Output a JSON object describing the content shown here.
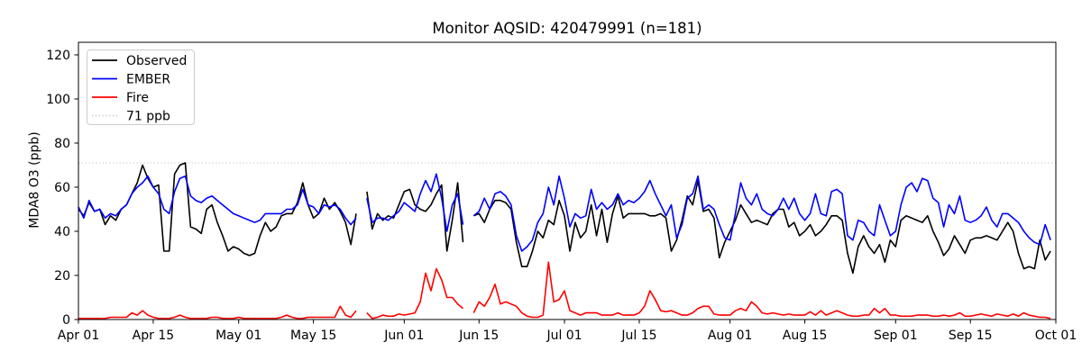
{
  "chart_data": {
    "type": "line",
    "title": "Monitor AQSID: 420479991 (n=181)",
    "xlabel": "",
    "ylabel": "MDA8 O3 (ppb)",
    "n_points": 181,
    "grid": false,
    "legend_position": "upper left",
    "x_start": "Apr 01",
    "x_end": "Sep 30",
    "x_unit": "day",
    "ylim": [
      0,
      125.7
    ],
    "y_ticks": [
      0,
      20,
      40,
      60,
      80,
      100,
      120
    ],
    "x_ticks": [
      {
        "label": "Apr 01",
        "day": 0
      },
      {
        "label": "Apr 15",
        "day": 14
      },
      {
        "label": "May 01",
        "day": 30
      },
      {
        "label": "May 15",
        "day": 44
      },
      {
        "label": "Jun 01",
        "day": 61
      },
      {
        "label": "Jun 15",
        "day": 75
      },
      {
        "label": "Jul 01",
        "day": 91
      },
      {
        "label": "Jul 15",
        "day": 105
      },
      {
        "label": "Aug 01",
        "day": 122
      },
      {
        "label": "Aug 15",
        "day": 136
      },
      {
        "label": "Sep 01",
        "day": 153
      },
      {
        "label": "Sep 15",
        "day": 167
      },
      {
        "label": "Oct 01",
        "day": 183
      }
    ],
    "threshold": {
      "label": "71 ppb",
      "value": 71,
      "color": "#d3d3d3",
      "style": "dotted"
    },
    "series": [
      {
        "name": "Observed",
        "color": "#000000",
        "style": "solid",
        "values": [
          50,
          47,
          53,
          49,
          50,
          43,
          47,
          45,
          50,
          52,
          57,
          62,
          70,
          64,
          60,
          61,
          31,
          31,
          66,
          70,
          71,
          42,
          41,
          39,
          50,
          52,
          44,
          38,
          31,
          33,
          32,
          30,
          29,
          30,
          38,
          44,
          40,
          42,
          47,
          48,
          48,
          53,
          62,
          52,
          46,
          48,
          55,
          50,
          53,
          49,
          44,
          34,
          48,
          null,
          58,
          41,
          48,
          45,
          47,
          46,
          52,
          58,
          59,
          52,
          50,
          49,
          52,
          57,
          61,
          31,
          45,
          62,
          35,
          null,
          47,
          48,
          44,
          50,
          54,
          54,
          53,
          50,
          35,
          24,
          24,
          31,
          40,
          37,
          45,
          43,
          54,
          47,
          31,
          44,
          37,
          40,
          52,
          38,
          50,
          35,
          48,
          56,
          46,
          48,
          48,
          48,
          48,
          47,
          47,
          48,
          46,
          31,
          36,
          45,
          56,
          52,
          63,
          49,
          50,
          46,
          28,
          35,
          40,
          45,
          52,
          48,
          44,
          45,
          44,
          43,
          48,
          50,
          50,
          42,
          44,
          38,
          40,
          43,
          38,
          40,
          43,
          47,
          47,
          45,
          30,
          21,
          33,
          38,
          33,
          30,
          34,
          26,
          36,
          33,
          45,
          47,
          46,
          45,
          44,
          47,
          40,
          35,
          29,
          32,
          38,
          34,
          30,
          36,
          37,
          37,
          38,
          37,
          36,
          40,
          44,
          40,
          30,
          23,
          24,
          23,
          36,
          27,
          31
        ]
      },
      {
        "name": "EMBER",
        "color": "#0000ff",
        "style": "solid",
        "values": [
          51,
          46,
          54,
          49,
          50,
          46,
          48,
          47,
          50,
          52,
          57,
          60,
          62,
          65,
          60,
          57,
          50,
          48,
          58,
          64,
          65,
          56,
          54,
          53,
          55,
          56,
          54,
          52,
          50,
          48,
          47,
          46,
          45,
          44,
          45,
          48,
          48,
          48,
          48,
          50,
          50,
          52,
          59,
          52,
          51,
          48,
          52,
          51,
          52,
          50,
          46,
          43,
          46,
          null,
          55,
          44,
          46,
          46,
          45,
          47,
          49,
          53,
          51,
          49,
          57,
          63,
          58,
          66,
          55,
          40,
          52,
          57,
          43,
          null,
          47,
          49,
          55,
          50,
          57,
          58,
          56,
          52,
          38,
          31,
          33,
          36,
          44,
          48,
          60,
          52,
          65,
          55,
          42,
          48,
          46,
          47,
          59,
          50,
          53,
          50,
          52,
          57,
          52,
          54,
          53,
          55,
          58,
          63,
          57,
          52,
          47,
          52,
          37,
          43,
          55,
          57,
          65,
          50,
          52,
          50,
          43,
          37,
          36,
          48,
          62,
          55,
          52,
          57,
          50,
          48,
          47,
          50,
          55,
          50,
          55,
          48,
          45,
          48,
          57,
          48,
          47,
          58,
          59,
          57,
          38,
          36,
          45,
          44,
          40,
          38,
          52,
          45,
          38,
          40,
          52,
          60,
          62,
          58,
          64,
          63,
          55,
          53,
          42,
          52,
          48,
          56,
          45,
          44,
          45,
          47,
          51,
          45,
          42,
          48,
          48,
          46,
          44,
          40,
          37,
          35,
          34,
          43,
          36
        ]
      },
      {
        "name": "Fire",
        "color": "#ff0000",
        "style": "solid",
        "values": [
          0.5,
          0.5,
          0.5,
          0.5,
          0.5,
          0.5,
          1,
          1,
          1,
          1,
          3,
          2,
          4,
          2,
          1,
          0.5,
          0.5,
          0.5,
          1,
          2,
          1,
          0.5,
          0.5,
          0.5,
          0.5,
          1,
          1,
          0.5,
          0.5,
          0.5,
          1,
          0.5,
          0.5,
          0.5,
          0.5,
          0.5,
          0.5,
          0.5,
          1,
          2,
          1,
          0.5,
          0.5,
          1,
          1,
          1,
          1,
          1,
          1,
          6,
          2,
          1,
          4,
          null,
          3,
          0.5,
          1,
          2,
          1.5,
          1.5,
          2.5,
          2,
          2.5,
          3,
          8,
          21,
          13,
          23,
          18,
          10,
          10,
          7,
          5,
          null,
          3,
          8,
          6,
          10,
          16,
          7,
          8,
          7,
          6,
          3,
          1.5,
          1,
          1,
          2,
          26,
          8,
          9,
          13,
          4,
          3,
          2,
          3,
          3,
          3,
          2,
          2,
          2,
          3,
          2,
          2,
          2,
          3,
          6,
          13,
          9,
          4,
          3.5,
          4,
          3,
          2,
          2,
          3,
          5,
          6,
          6,
          2.5,
          2,
          2,
          2,
          4,
          5,
          4,
          8,
          6,
          3,
          2.5,
          3,
          2.5,
          2,
          2.5,
          2,
          2,
          2,
          3.5,
          2,
          4,
          2,
          3,
          4,
          3,
          2,
          1.5,
          1.5,
          2,
          2,
          5,
          3,
          5,
          2,
          2,
          1.5,
          1.5,
          1.5,
          2,
          2,
          2,
          1.5,
          1.5,
          2,
          1.5,
          2,
          3,
          1.5,
          1.5,
          2,
          2.5,
          2,
          1.5,
          2.5,
          2,
          1.5,
          2.5,
          1.5,
          3,
          2,
          1.5,
          1,
          1,
          0.5
        ]
      }
    ]
  }
}
